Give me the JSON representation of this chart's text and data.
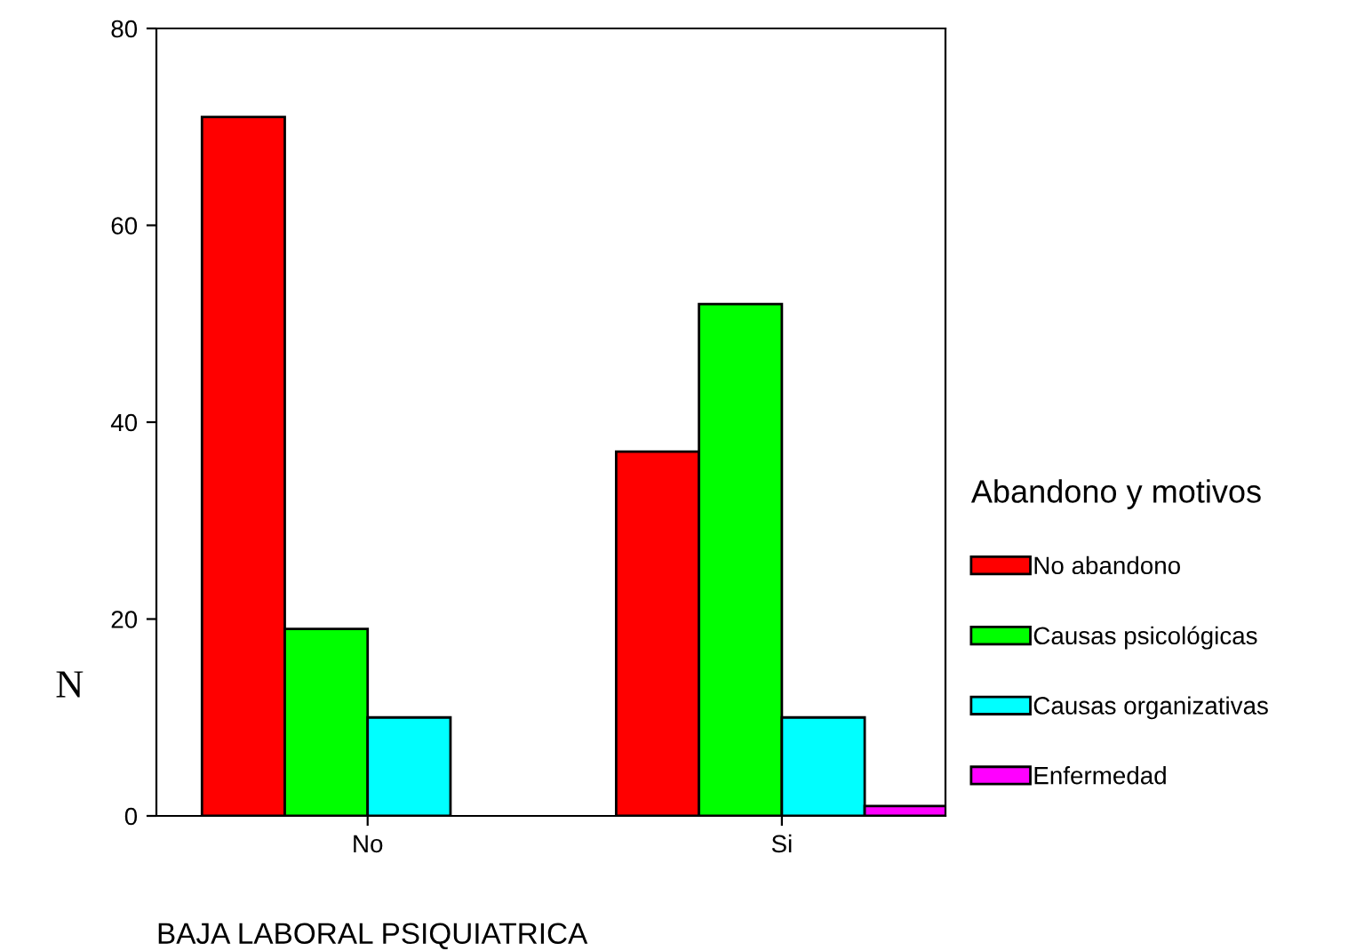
{
  "chart_data": {
    "type": "bar",
    "xlabel": "BAJA LABORAL PSIQUIATRICA",
    "ylabel": "N",
    "legend_title": "Abandono y motivos",
    "categories": [
      "No",
      "Si"
    ],
    "series": [
      {
        "name": "No abandono",
        "color": "#ff0000",
        "values": [
          71,
          37
        ]
      },
      {
        "name": "Causas psicológicas",
        "color": "#00ff00",
        "values": [
          19,
          52
        ]
      },
      {
        "name": "Causas organizativas",
        "color": "#00ffff",
        "values": [
          10,
          10
        ]
      },
      {
        "name": "Enfermedad",
        "color": "#ff00ff",
        "values": [
          null,
          1
        ]
      }
    ],
    "ylim": [
      0,
      80
    ],
    "yticks": [
      0,
      20,
      40,
      60,
      80
    ],
    "grid": false,
    "legend": "right"
  }
}
